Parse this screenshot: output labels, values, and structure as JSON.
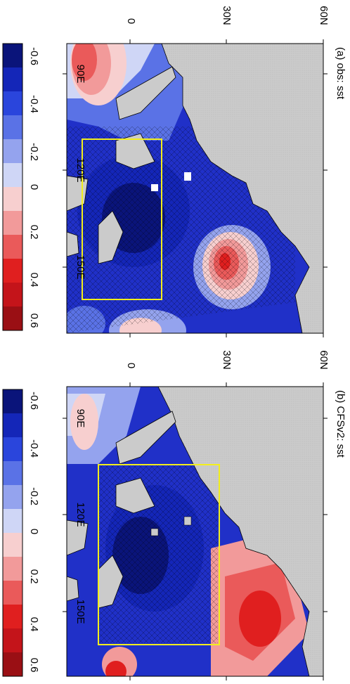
{
  "panels": [
    {
      "title": "(a) obs: sst",
      "lat_ticks": [
        "0",
        "30N",
        "60N"
      ],
      "lon_ticks": [
        "90E",
        "120E",
        "150E"
      ],
      "colorbar_labels": [
        "-0.6",
        "-0.4",
        "-0.2",
        "0",
        "0.2",
        "0.4",
        "0.6"
      ]
    },
    {
      "title": "(b) CFSv2: sst",
      "lat_ticks": [
        "0",
        "30N",
        "60N"
      ],
      "lon_ticks": [
        "90E",
        "120E",
        "150E"
      ],
      "colorbar_labels": [
        "-0.6",
        "-0.4",
        "-0.2",
        "0",
        "0.2",
        "0.4",
        "0.6"
      ]
    }
  ],
  "colorbar_colors": [
    "#0a147a",
    "#1426b8",
    "#2a45dc",
    "#5a72e6",
    "#94a3ee",
    "#cfd6f6",
    "#f7cfcf",
    "#f29a9a",
    "#ea5a5a",
    "#e01f1f",
    "#c4141a",
    "#9a0f14"
  ],
  "colors": {
    "land": "#cbcbcb",
    "box": "#f2ee1c",
    "grid": "#808080"
  }
}
